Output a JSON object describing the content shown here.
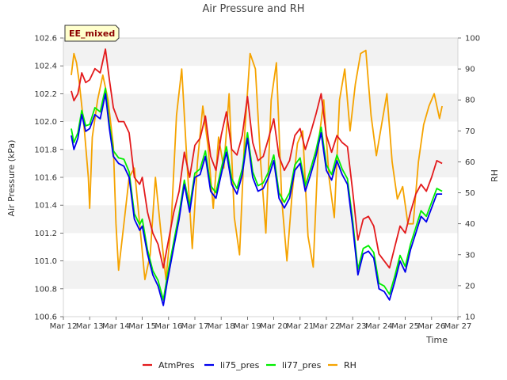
{
  "chart_data": {
    "type": "line",
    "title": "Air Pressure and RH",
    "badge": "EE_mixed",
    "xlabel": "Time",
    "ylabel_left": "Air Pressure (kPa)",
    "ylabel_right": "RH",
    "xlim": [
      0,
      15
    ],
    "ylim_left": [
      100.6,
      102.6
    ],
    "ylim_right": [
      10,
      100
    ],
    "x_tick_values": [
      0,
      1,
      2,
      3,
      4,
      5,
      6,
      7,
      8,
      9,
      10,
      11,
      12,
      13,
      14,
      15
    ],
    "x_tick_labels": [
      "Mar 12",
      "Mar 13",
      "Mar 14",
      "Mar 15",
      "Mar 16",
      "Mar 17",
      "Mar 18",
      "Mar 19",
      "Mar 20",
      "Mar 21",
      "Mar 22",
      "Mar 23",
      "Mar 24",
      "Mar 25",
      "Mar 26",
      "Mar 27"
    ],
    "y_left_ticks": [
      100.6,
      100.8,
      101.0,
      101.2,
      101.4,
      101.6,
      101.8,
      102.0,
      102.2,
      102.4,
      102.6
    ],
    "y_left_tick_labels": [
      "100.6",
      "100.8",
      "101.0",
      "101.2",
      "101.4",
      "101.6",
      "101.8",
      "102.0",
      "102.2",
      "102.4",
      "102.6"
    ],
    "y_right_ticks": [
      10,
      20,
      30,
      40,
      50,
      60,
      70,
      80,
      90,
      100
    ],
    "y_right_tick_labels": [
      "10",
      "20",
      "30",
      "40",
      "50",
      "60",
      "70",
      "80",
      "90",
      "100"
    ],
    "grid": "horizontal bands",
    "legend_position": "bottom",
    "series": [
      {
        "name": "AtmPres",
        "axis": "left",
        "color": "#e31a1c",
        "x": [
          0.3,
          0.4,
          0.55,
          0.7,
          0.85,
          1.0,
          1.2,
          1.4,
          1.6,
          1.75,
          1.9,
          2.1,
          2.3,
          2.5,
          2.7,
          2.9,
          3.0,
          3.2,
          3.4,
          3.6,
          3.8,
          3.95,
          4.2,
          4.4,
          4.6,
          4.8,
          5.0,
          5.2,
          5.4,
          5.6,
          5.8,
          6.0,
          6.2,
          6.4,
          6.6,
          6.8,
          7.0,
          7.2,
          7.4,
          7.6,
          7.8,
          8.0,
          8.2,
          8.4,
          8.6,
          8.8,
          9.0,
          9.2,
          9.4,
          9.6,
          9.8,
          10.0,
          10.2,
          10.4,
          10.6,
          10.8,
          11.0,
          11.2,
          11.4,
          11.6,
          11.8,
          12.0,
          12.2,
          12.4,
          12.6,
          12.8,
          13.0,
          13.2,
          13.4,
          13.6,
          13.8,
          14.0,
          14.2,
          14.4
        ],
        "y": [
          102.22,
          102.15,
          102.2,
          102.35,
          102.28,
          102.3,
          102.38,
          102.35,
          102.52,
          102.3,
          102.1,
          102.0,
          102.0,
          101.92,
          101.6,
          101.55,
          101.6,
          101.35,
          101.2,
          101.12,
          100.95,
          101.1,
          101.35,
          101.5,
          101.78,
          101.6,
          101.83,
          101.88,
          102.04,
          101.75,
          101.65,
          101.9,
          102.07,
          101.8,
          101.76,
          101.9,
          102.18,
          101.85,
          101.72,
          101.75,
          101.88,
          102.02,
          101.75,
          101.65,
          101.72,
          101.9,
          101.95,
          101.8,
          101.92,
          102.05,
          102.2,
          101.9,
          101.78,
          101.9,
          101.85,
          101.82,
          101.5,
          101.15,
          101.3,
          101.32,
          101.25,
          101.05,
          101.0,
          100.95,
          101.1,
          101.25,
          101.2,
          101.35,
          101.48,
          101.55,
          101.5,
          101.6,
          101.72,
          101.7
        ]
      },
      {
        "name": "li75_pres",
        "axis": "left",
        "color": "#0000ee",
        "x": [
          0.3,
          0.4,
          0.55,
          0.7,
          0.85,
          1.0,
          1.2,
          1.4,
          1.6,
          1.75,
          1.9,
          2.1,
          2.3,
          2.5,
          2.7,
          2.9,
          3.0,
          3.2,
          3.4,
          3.6,
          3.8,
          3.95,
          4.2,
          4.4,
          4.6,
          4.8,
          5.0,
          5.2,
          5.4,
          5.6,
          5.8,
          6.0,
          6.2,
          6.4,
          6.6,
          6.8,
          7.0,
          7.2,
          7.4,
          7.6,
          7.8,
          8.0,
          8.2,
          8.4,
          8.6,
          8.8,
          9.0,
          9.2,
          9.4,
          9.6,
          9.8,
          10.0,
          10.2,
          10.4,
          10.6,
          10.8,
          11.0,
          11.2,
          11.4,
          11.6,
          11.8,
          12.0,
          12.2,
          12.4,
          12.6,
          12.8,
          13.0,
          13.2,
          13.4,
          13.6,
          13.8,
          14.0,
          14.2,
          14.4
        ],
        "y": [
          101.9,
          101.8,
          101.88,
          102.05,
          101.93,
          101.95,
          102.05,
          102.02,
          102.2,
          101.95,
          101.75,
          101.7,
          101.68,
          101.6,
          101.3,
          101.22,
          101.25,
          101.05,
          100.9,
          100.82,
          100.68,
          100.85,
          101.1,
          101.3,
          101.55,
          101.35,
          101.6,
          101.62,
          101.75,
          101.5,
          101.45,
          101.62,
          101.78,
          101.55,
          101.48,
          101.62,
          101.88,
          101.6,
          101.5,
          101.52,
          101.6,
          101.72,
          101.45,
          101.38,
          101.45,
          101.65,
          101.7,
          101.5,
          101.62,
          101.75,
          101.92,
          101.65,
          101.58,
          101.72,
          101.62,
          101.55,
          101.25,
          100.9,
          101.05,
          101.07,
          101.02,
          100.8,
          100.78,
          100.72,
          100.85,
          101.0,
          100.92,
          101.08,
          101.2,
          101.32,
          101.28,
          101.38,
          101.48,
          101.48
        ]
      },
      {
        "name": "li77_pres",
        "axis": "left",
        "color": "#00ee00",
        "x": [
          0.3,
          0.4,
          0.55,
          0.7,
          0.85,
          1.0,
          1.2,
          1.4,
          1.6,
          1.75,
          1.9,
          2.1,
          2.3,
          2.5,
          2.7,
          2.9,
          3.0,
          3.2,
          3.4,
          3.6,
          3.8,
          3.95,
          4.2,
          4.4,
          4.6,
          4.8,
          5.0,
          5.2,
          5.4,
          5.6,
          5.8,
          6.0,
          6.2,
          6.4,
          6.6,
          6.8,
          7.0,
          7.2,
          7.4,
          7.6,
          7.8,
          8.0,
          8.2,
          8.4,
          8.6,
          8.8,
          9.0,
          9.2,
          9.4,
          9.6,
          9.8,
          10.0,
          10.2,
          10.4,
          10.6,
          10.8,
          11.0,
          11.2,
          11.4,
          11.6,
          11.8,
          12.0,
          12.2,
          12.4,
          12.6,
          12.8,
          13.0,
          13.2,
          13.4,
          13.6,
          13.8,
          14.0,
          14.2,
          14.4
        ],
        "y": [
          101.95,
          101.85,
          101.92,
          102.08,
          101.97,
          101.98,
          102.1,
          102.07,
          102.24,
          101.98,
          101.79,
          101.74,
          101.73,
          101.64,
          101.34,
          101.26,
          101.3,
          101.08,
          100.93,
          100.86,
          100.72,
          100.89,
          101.14,
          101.34,
          101.58,
          101.39,
          101.63,
          101.66,
          101.79,
          101.54,
          101.49,
          101.66,
          101.82,
          101.59,
          101.52,
          101.66,
          101.92,
          101.64,
          101.54,
          101.56,
          101.64,
          101.76,
          101.49,
          101.42,
          101.49,
          101.69,
          101.74,
          101.54,
          101.66,
          101.79,
          101.96,
          101.69,
          101.62,
          101.76,
          101.66,
          101.59,
          101.29,
          100.94,
          101.09,
          101.11,
          101.06,
          100.84,
          100.82,
          100.76,
          100.89,
          101.04,
          100.96,
          101.12,
          101.24,
          101.36,
          101.32,
          101.42,
          101.52,
          101.5
        ]
      },
      {
        "name": "RH",
        "axis": "right",
        "color": "#f5a300",
        "x": [
          0.3,
          0.4,
          0.5,
          0.6,
          0.8,
          0.95,
          1.0,
          1.1,
          1.3,
          1.5,
          1.7,
          1.9,
          2.0,
          2.1,
          2.3,
          2.5,
          2.7,
          2.9,
          3.1,
          3.3,
          3.5,
          3.7,
          3.9,
          4.1,
          4.3,
          4.5,
          4.7,
          4.9,
          5.1,
          5.3,
          5.5,
          5.7,
          5.9,
          6.1,
          6.3,
          6.5,
          6.7,
          6.9,
          7.1,
          7.3,
          7.5,
          7.7,
          7.9,
          8.1,
          8.3,
          8.5,
          8.7,
          8.9,
          9.1,
          9.3,
          9.5,
          9.7,
          9.9,
          10.1,
          10.3,
          10.5,
          10.7,
          10.9,
          11.1,
          11.3,
          11.5,
          11.7,
          11.9,
          12.1,
          12.3,
          12.5,
          12.7,
          12.9,
          13.1,
          13.3,
          13.5,
          13.7,
          13.9,
          14.1,
          14.3,
          14.4
        ],
        "y": [
          88,
          95,
          92,
          86,
          70,
          55,
          45,
          68,
          80,
          88,
          80,
          65,
          40,
          25,
          40,
          55,
          58,
          40,
          22,
          30,
          55,
          38,
          22,
          40,
          75,
          90,
          60,
          32,
          60,
          78,
          65,
          45,
          68,
          58,
          82,
          42,
          30,
          70,
          95,
          90,
          60,
          37,
          80,
          92,
          48,
          28,
          50,
          66,
          70,
          36,
          26,
          66,
          80,
          55,
          42,
          80,
          90,
          70,
          85,
          95,
          96,
          75,
          62,
          72,
          82,
          60,
          48,
          52,
          40,
          40,
          60,
          72,
          78,
          82,
          74,
          78
        ]
      }
    ]
  }
}
